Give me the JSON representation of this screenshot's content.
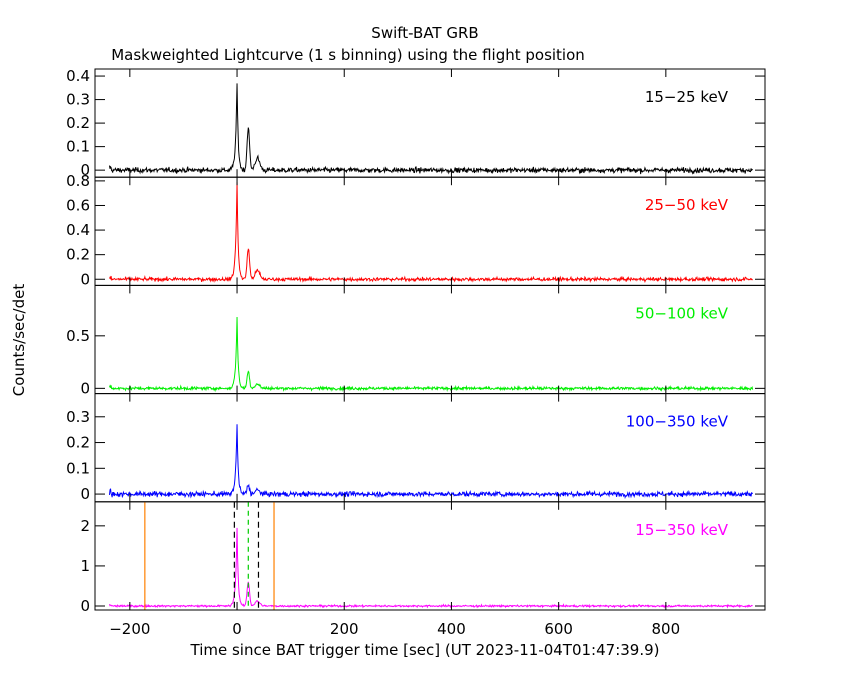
{
  "title": "Swift-BAT GRB",
  "subtitle": "Maskweighted Lightcurve (1 s binning) using the flight position",
  "ylabel": "Counts/sec/det",
  "xlabel": "Time since BAT trigger time [sec] (UT 2023-11-04T01:47:39.9)",
  "chart_data": {
    "type": "line",
    "x_range": [
      -265,
      985
    ],
    "x_ticks": [
      -200,
      0,
      200,
      400,
      600,
      800
    ],
    "x_tick_labels": [
      "−200",
      "0",
      "200",
      "400",
      "600",
      "800"
    ],
    "data_start": -238,
    "data_end": 962,
    "peaks_sec": [
      0,
      21,
      38
    ],
    "panels": [
      {
        "band": "15−25 keV",
        "color": "#000000",
        "ylim": [
          -0.03,
          0.43
        ],
        "yticks": [
          0,
          0.1,
          0.2,
          0.3,
          0.4
        ],
        "ytick_labels": [
          "0",
          "0.1",
          "0.2",
          "0.3",
          "0.4"
        ],
        "noise": 0.009,
        "peak1": 0.37,
        "peak2": 0.18,
        "peak3": 0.05
      },
      {
        "band": "25−50 keV",
        "color": "#ff0000",
        "ylim": [
          -0.05,
          0.83
        ],
        "yticks": [
          0,
          0.2,
          0.4,
          0.6,
          0.8
        ],
        "ytick_labels": [
          "0",
          "0.2",
          "0.4",
          "0.6",
          "0.8"
        ],
        "noise": 0.012,
        "peak1": 0.79,
        "peak2": 0.25,
        "peak3": 0.07
      },
      {
        "band": "50−100 keV",
        "color": "#00ee00",
        "ylim": [
          -0.05,
          0.98
        ],
        "yticks": [
          0,
          0.5
        ],
        "ytick_labels": [
          "0",
          "0.5"
        ],
        "noise": 0.012,
        "peak1": 0.67,
        "peak2": 0.16,
        "peak3": 0.04
      },
      {
        "band": "100−350 keV",
        "color": "#0000ff",
        "ylim": [
          -0.03,
          0.39
        ],
        "yticks": [
          0,
          0.1,
          0.2,
          0.3
        ],
        "ytick_labels": [
          "0",
          "0.1",
          "0.2",
          "0.3"
        ],
        "noise": 0.008,
        "peak1": 0.27,
        "peak2": 0.035,
        "peak3": 0.015
      },
      {
        "band": "15−350 keV",
        "color": "#ff00ff",
        "ylim": [
          -0.1,
          2.6
        ],
        "yticks": [
          0,
          1,
          2
        ],
        "ytick_labels": [
          "0",
          "1",
          "2"
        ],
        "noise": 0.02,
        "peak1": 1.95,
        "peak2": 0.6,
        "peak3": 0.12
      }
    ],
    "markers": {
      "orange_solid": [
        -172,
        69
      ],
      "black_dashed": [
        -5,
        40
      ],
      "green_dashed": [
        21
      ],
      "colors": {
        "orange": "#ff8000",
        "black": "#000000",
        "green": "#00cc00"
      }
    }
  }
}
